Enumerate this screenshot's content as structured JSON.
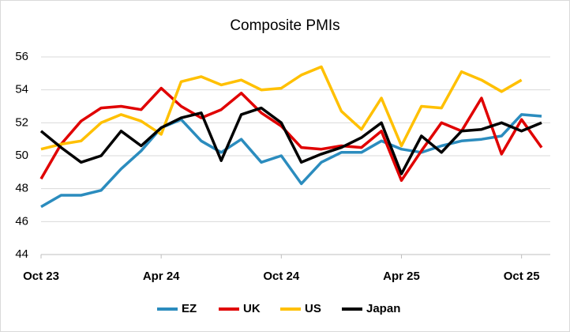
{
  "chart_data": {
    "type": "line",
    "title": "Composite PMIs",
    "categories": [
      "Oct 23",
      null,
      null,
      null,
      null,
      null,
      "Apr 24",
      null,
      null,
      null,
      null,
      null,
      "Oct 24",
      null,
      null,
      null,
      null,
      null,
      "Apr 25",
      null,
      null,
      null,
      null,
      null,
      "Oct 25",
      null
    ],
    "series": [
      {
        "name": "EZ",
        "color": "#2b8cbe",
        "values": [
          46.9,
          47.6,
          47.6,
          47.9,
          49.2,
          50.3,
          51.7,
          52.2,
          50.9,
          50.2,
          51.0,
          49.6,
          50.0,
          48.3,
          49.6,
          50.2,
          50.2,
          50.9,
          50.4,
          50.2,
          50.6,
          50.9,
          51.0,
          51.2,
          52.5,
          52.4
        ]
      },
      {
        "name": "UK",
        "color": "#e00000",
        "values": [
          48.6,
          50.7,
          52.1,
          52.9,
          53.0,
          52.8,
          54.1,
          53.0,
          52.3,
          52.8,
          53.8,
          52.6,
          51.8,
          50.5,
          50.4,
          50.6,
          50.5,
          51.5,
          48.5,
          50.3,
          52.0,
          51.5,
          53.5,
          50.1,
          52.2,
          50.5
        ]
      },
      {
        "name": "US",
        "color": "#ffc000",
        "values": [
          50.4,
          50.7,
          50.9,
          52.0,
          52.5,
          52.1,
          51.3,
          54.5,
          54.8,
          54.3,
          54.6,
          54.0,
          54.1,
          54.9,
          55.4,
          52.7,
          51.6,
          53.5,
          50.6,
          53.0,
          52.9,
          55.1,
          54.6,
          53.9,
          54.6,
          null
        ]
      },
      {
        "name": "Japan",
        "color": "#000000",
        "values": [
          51.5,
          50.5,
          49.6,
          50.0,
          51.5,
          50.6,
          51.7,
          52.3,
          52.6,
          49.7,
          52.5,
          52.9,
          52.0,
          49.6,
          50.1,
          50.5,
          51.1,
          52.0,
          48.9,
          51.2,
          50.2,
          51.5,
          51.6,
          52.0,
          51.5,
          52.0
        ]
      }
    ],
    "ylim": [
      44,
      56
    ],
    "yticks": [
      44,
      46,
      48,
      50,
      52,
      54,
      56
    ],
    "grid": true,
    "legend": "bottom"
  }
}
